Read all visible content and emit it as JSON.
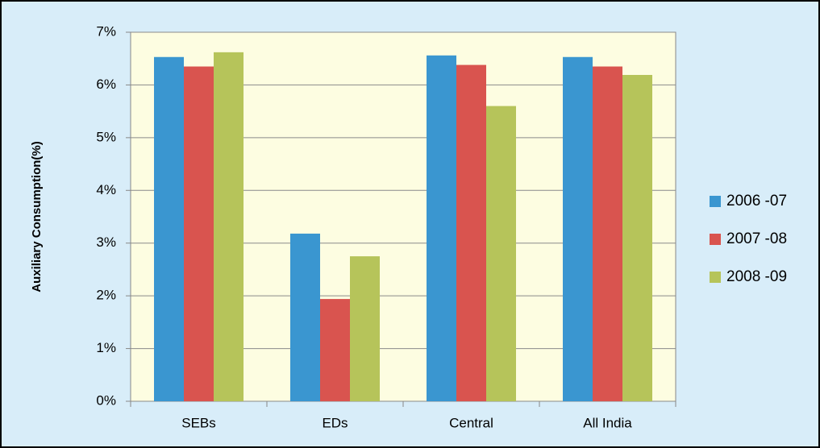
{
  "chart_data": {
    "type": "bar",
    "y_label": "Auxiliary Consumption(%)",
    "categories": [
      "SEBs",
      "EDs",
      "Central",
      "All India"
    ],
    "series": [
      {
        "name": "2006 -07",
        "color": "#3a96d0",
        "values": [
          6.53,
          3.18,
          6.56,
          6.53
        ]
      },
      {
        "name": "2007 -08",
        "color": "#d9544f",
        "values": [
          6.35,
          1.94,
          6.38,
          6.35
        ]
      },
      {
        "name": "2008 -09",
        "color": "#b6c45a",
        "values": [
          6.62,
          2.75,
          5.6,
          6.19
        ]
      }
    ],
    "ylim": [
      0,
      7
    ],
    "yticks": [
      {
        "value": 0,
        "label": "0%"
      },
      {
        "value": 1,
        "label": "1%"
      },
      {
        "value": 2,
        "label": "2%"
      },
      {
        "value": 3,
        "label": "3%"
      },
      {
        "value": 4,
        "label": "4%"
      },
      {
        "value": 5,
        "label": "5%"
      },
      {
        "value": 6,
        "label": "6%"
      },
      {
        "value": 7,
        "label": "7%"
      }
    ],
    "grid": true,
    "legend": "right"
  }
}
